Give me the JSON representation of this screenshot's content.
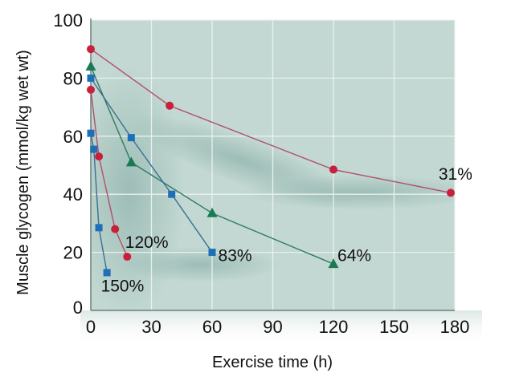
{
  "chart_data": {
    "type": "line",
    "title": "",
    "xlabel": "Exercise time (h)",
    "ylabel": "Muscle glycogen (mmol/kg wet wt)",
    "xlim": [
      0,
      180
    ],
    "ylim": [
      0,
      100
    ],
    "xticks": [
      "0",
      "30",
      "60",
      "90",
      "120",
      "150",
      "180"
    ],
    "xtick_values": [
      0,
      30,
      60,
      90,
      120,
      150,
      180
    ],
    "yticks": [
      "0",
      "20",
      "40",
      "60",
      "80",
      "100"
    ],
    "ytick_values": [
      0,
      20,
      40,
      60,
      80,
      100
    ],
    "grid": true,
    "background_color": "#c3d8d2",
    "series": [
      {
        "name": "31%",
        "marker": "circle",
        "color": "#c8203c",
        "line_color": "#b0506a",
        "x": [
          0,
          39,
          120,
          178
        ],
        "y": [
          90,
          70.5,
          48.5,
          40.5
        ],
        "label": "31%",
        "label_at": [
          172,
          45
        ]
      },
      {
        "name": "64%",
        "marker": "triangle",
        "color": "#1a7a55",
        "line_color": "#2f7a66",
        "x": [
          0,
          20,
          60,
          120
        ],
        "y": [
          84,
          51,
          33.5,
          16
        ],
        "label": "64%",
        "label_at": [
          122,
          17
        ]
      },
      {
        "name": "83%",
        "marker": "square",
        "color": "#1d6fb8",
        "line_color": "#3a6f95",
        "x": [
          0,
          20,
          40,
          60
        ],
        "y": [
          80,
          59.5,
          40,
          20
        ],
        "label": "83%",
        "label_at": [
          63,
          17
        ]
      },
      {
        "name": "120%",
        "marker": "circle",
        "color": "#c8203c",
        "line_color": "#b0506a",
        "x": [
          0,
          4,
          12,
          18
        ],
        "y": [
          76,
          53,
          28,
          18.5
        ],
        "label": "120%",
        "label_at": [
          17,
          21.5
        ]
      },
      {
        "name": "150%",
        "marker": "square",
        "color": "#1d6fb8",
        "line_color": "#3a6f95",
        "x": [
          0,
          1.5,
          4,
          8
        ],
        "y": [
          61,
          55.5,
          28.5,
          13
        ],
        "label": "150%",
        "label_at": [
          5,
          6.5
        ]
      }
    ]
  }
}
